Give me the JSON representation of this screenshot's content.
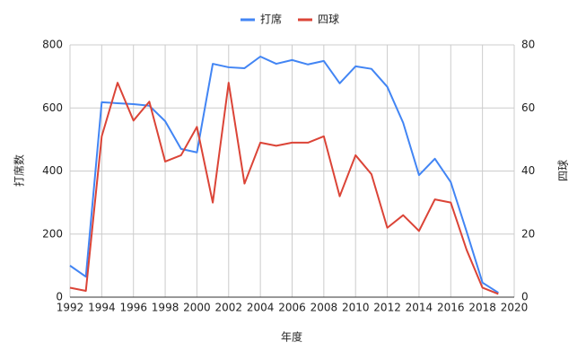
{
  "chart_data": {
    "type": "line",
    "x": [
      1992,
      1993,
      1994,
      1995,
      1996,
      1997,
      1998,
      1999,
      2000,
      2001,
      2002,
      2003,
      2004,
      2005,
      2006,
      2007,
      2008,
      2009,
      2010,
      2011,
      2012,
      2013,
      2014,
      2015,
      2016,
      2017,
      2018,
      2019
    ],
    "series": [
      {
        "name": "打席",
        "color": "#4285f4",
        "values": [
          100,
          65,
          618,
          615,
          612,
          607,
          558,
          470,
          459,
          740,
          729,
          726,
          763,
          740,
          752,
          738,
          749,
          678,
          732,
          724,
          667,
          553,
          387,
          439,
          365,
          208,
          46,
          14
        ]
      },
      {
        "name": "四球",
        "color": "#db4437",
        "axis": "y2",
        "values": [
          3,
          2,
          51,
          68,
          56,
          62,
          43,
          45,
          54,
          30,
          68,
          36,
          49,
          48,
          49,
          49,
          51,
          32,
          45,
          39,
          22,
          26,
          21,
          31,
          30,
          15,
          3,
          1
        ]
      }
    ],
    "xlabel": "年度",
    "ylabel": "打席数",
    "y2label": "四球",
    "xlim": [
      1992,
      2020
    ],
    "xticks": [
      1992,
      1994,
      1996,
      1998,
      2000,
      2002,
      2004,
      2006,
      2008,
      2010,
      2012,
      2014,
      2016,
      2018,
      2020
    ],
    "ylim": [
      0,
      800
    ],
    "yticks": [
      0,
      200,
      400,
      600,
      800
    ],
    "y2lim": [
      0,
      80
    ],
    "y2ticks": [
      0,
      20,
      40,
      60,
      80
    ],
    "grid": true,
    "legend": "top"
  }
}
